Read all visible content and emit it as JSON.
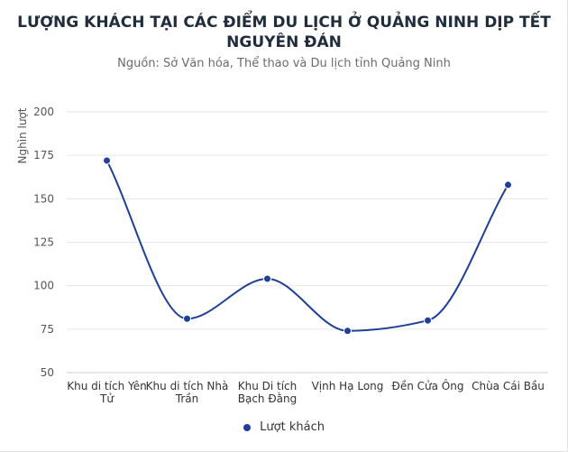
{
  "chart_data": {
    "type": "line",
    "title": "LƯỢNG KHÁCH TẠI CÁC ĐIỂM DU LỊCH Ở QUẢNG NINH DỊP TẾT NGUYÊN ĐÁN",
    "title_lines": [
      "LƯỢNG KHÁCH TẠI CÁC ĐIỂM DU LỊCH Ở QUẢNG NINH DỊP TẾT",
      "NGUYÊN ĐÁN"
    ],
    "subtitle": "Nguồn: Sở Văn hóa, Thể thao và Du lịch tỉnh Quảng Ninh",
    "ylabel": "Nghìn lượt",
    "xlabel": "",
    "categories": [
      [
        "Khu di tích Yên",
        "Tử"
      ],
      [
        "Khu di tích Nhà",
        "Trần"
      ],
      [
        "Khu Di tích",
        "Bạch Đằng"
      ],
      [
        "Vịnh Hạ Long"
      ],
      [
        "Đền Cửa Ông"
      ],
      [
        "Chùa Cái Bầu"
      ]
    ],
    "series": [
      {
        "name": "Lượt khách",
        "values": [
          172,
          81,
          104,
          74,
          80,
          158
        ]
      }
    ],
    "ylim": [
      50,
      200
    ],
    "yticks": [
      50,
      75,
      100,
      125,
      150,
      175,
      200
    ],
    "grid": true,
    "legend_position": "bottom",
    "smooth": true,
    "colors": {
      "series": "#1f3f99",
      "grid": "#e6e6e6",
      "axis_text": "#555555"
    }
  }
}
